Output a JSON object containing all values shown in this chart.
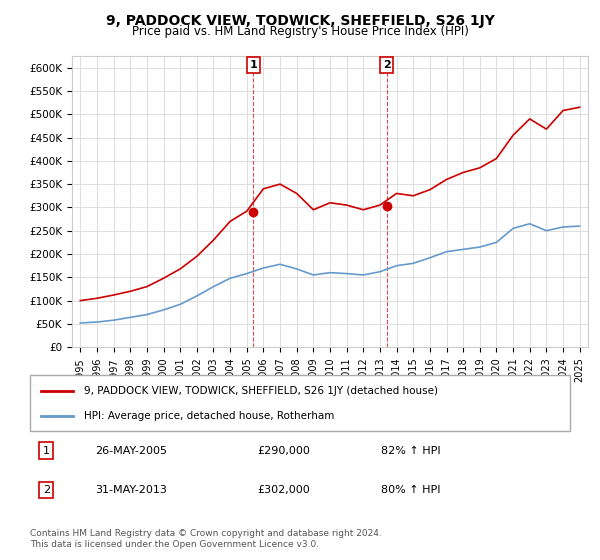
{
  "title": "9, PADDOCK VIEW, TODWICK, SHEFFIELD, S26 1JY",
  "subtitle": "Price paid vs. HM Land Registry's House Price Index (HPI)",
  "xlabel": "",
  "ylabel": "",
  "ylim": [
    0,
    625000
  ],
  "yticks": [
    0,
    50000,
    100000,
    150000,
    200000,
    250000,
    300000,
    350000,
    400000,
    450000,
    500000,
    550000,
    600000
  ],
  "ytick_labels": [
    "£0",
    "£50K",
    "£100K",
    "£150K",
    "£200K",
    "£250K",
    "£300K",
    "£350K",
    "£400K",
    "£450K",
    "£500K",
    "£550K",
    "£600K"
  ],
  "line1_color": "#cc0000",
  "line2_color": "#6699cc",
  "marker_color": "#cc0000",
  "vline_color": "#cc0000",
  "annotation_box_color": "#cc0000",
  "background_color": "#ffffff",
  "grid_color": "#dddddd",
  "legend_label1": "9, PADDOCK VIEW, TODWICK, SHEFFIELD, S26 1JY (detached house)",
  "legend_label2": "HPI: Average price, detached house, Rotherham",
  "transaction1_label": "1",
  "transaction1_date": "26-MAY-2005",
  "transaction1_price": "£290,000",
  "transaction1_hpi": "82% ↑ HPI",
  "transaction2_label": "2",
  "transaction2_date": "31-MAY-2013",
  "transaction2_price": "£302,000",
  "transaction2_hpi": "80% ↑ HPI",
  "footer": "Contains HM Land Registry data © Crown copyright and database right 2024.\nThis data is licensed under the Open Government Licence v3.0.",
  "hpi_x": [
    1995,
    1996,
    1997,
    1998,
    1999,
    2000,
    2001,
    2002,
    2003,
    2004,
    2005,
    2006,
    2007,
    2008,
    2009,
    2010,
    2011,
    2012,
    2013,
    2014,
    2015,
    2016,
    2017,
    2018,
    2019,
    2020,
    2021,
    2022,
    2023,
    2024,
    2025
  ],
  "hpi_y": [
    52000,
    54000,
    58000,
    64000,
    70000,
    80000,
    92000,
    110000,
    130000,
    148000,
    158000,
    170000,
    178000,
    168000,
    155000,
    160000,
    158000,
    155000,
    162000,
    175000,
    180000,
    192000,
    205000,
    210000,
    215000,
    225000,
    255000,
    265000,
    250000,
    258000,
    260000
  ],
  "price_x": [
    1995,
    1996,
    1997,
    1998,
    1999,
    2000,
    2001,
    2002,
    2003,
    2004,
    2005,
    2006,
    2007,
    2008,
    2009,
    2010,
    2011,
    2012,
    2013,
    2014,
    2015,
    2016,
    2017,
    2018,
    2019,
    2020,
    2021,
    2022,
    2023,
    2024,
    2025
  ],
  "price_y": [
    100000,
    105000,
    112000,
    120000,
    130000,
    148000,
    168000,
    195000,
    230000,
    270000,
    292000,
    340000,
    350000,
    330000,
    295000,
    310000,
    305000,
    295000,
    305000,
    330000,
    325000,
    338000,
    360000,
    375000,
    385000,
    405000,
    455000,
    490000,
    468000,
    508000,
    515000
  ],
  "transaction1_x": 2005.4,
  "transaction1_y": 290000,
  "transaction2_x": 2013.4,
  "transaction2_y": 302000,
  "xlim_left": 1994.5,
  "xlim_right": 2025.5
}
